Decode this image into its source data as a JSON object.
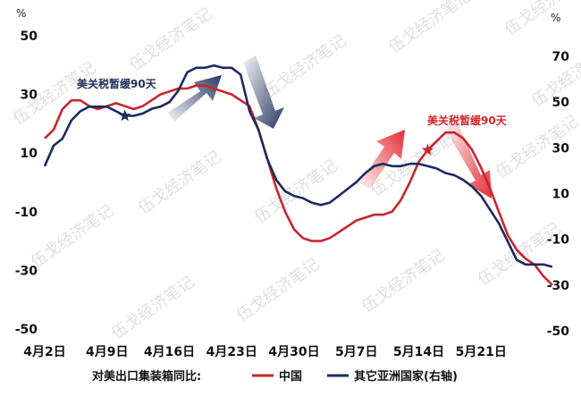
{
  "chart_data": {
    "type": "line",
    "title": "",
    "xlabel": "",
    "ylabel_left_unit": "%",
    "ylabel_right_unit": "%",
    "y_left_range": [
      -50,
      50
    ],
    "y_left_ticks": [
      50,
      30,
      10,
      -10,
      -30,
      -50
    ],
    "y_right_range": [
      -50,
      80
    ],
    "y_right_ticks": [
      70,
      50,
      30,
      10,
      -10,
      -30,
      -50
    ],
    "x_range": [
      0,
      55
    ],
    "x_ticks": [
      {
        "x": 0,
        "label": "4月2日"
      },
      {
        "x": 7,
        "label": "4月9日"
      },
      {
        "x": 14,
        "label": "4月16日"
      },
      {
        "x": 21,
        "label": "4月23日"
      },
      {
        "x": 28,
        "label": "4月30日"
      },
      {
        "x": 35,
        "label": "5月7日"
      },
      {
        "x": 42,
        "label": "5月14日"
      },
      {
        "x": 49,
        "label": "5月21日"
      }
    ],
    "legend_title": "对美出口集装箱同比:",
    "series": [
      {
        "name": "中国",
        "axis": "left",
        "color": "#c8252c",
        "points": [
          [
            0,
            15
          ],
          [
            1,
            18
          ],
          [
            2,
            25
          ],
          [
            3,
            28
          ],
          [
            4,
            28
          ],
          [
            5,
            26
          ],
          [
            6,
            25
          ],
          [
            7,
            26
          ],
          [
            8,
            27
          ],
          [
            9,
            26
          ],
          [
            10,
            25
          ],
          [
            11,
            26
          ],
          [
            12,
            28
          ],
          [
            13,
            30
          ],
          [
            14,
            31
          ],
          [
            15,
            32
          ],
          [
            16,
            32
          ],
          [
            17,
            33
          ],
          [
            18,
            33
          ],
          [
            19,
            32
          ],
          [
            20,
            31
          ],
          [
            21,
            30
          ],
          [
            22,
            28
          ],
          [
            23,
            26
          ],
          [
            24,
            18
          ],
          [
            25,
            8
          ],
          [
            26,
            -2
          ],
          [
            27,
            -10
          ],
          [
            28,
            -16
          ],
          [
            29,
            -19
          ],
          [
            30,
            -20
          ],
          [
            31,
            -20
          ],
          [
            32,
            -19
          ],
          [
            33,
            -17
          ],
          [
            34,
            -15
          ],
          [
            35,
            -13
          ],
          [
            36,
            -12
          ],
          [
            37,
            -11
          ],
          [
            38,
            -11
          ],
          [
            39,
            -10
          ],
          [
            40,
            -6
          ],
          [
            41,
            0
          ],
          [
            42,
            7
          ],
          [
            43,
            11
          ],
          [
            44,
            14
          ],
          [
            45,
            17
          ],
          [
            46,
            17
          ],
          [
            47,
            15
          ],
          [
            48,
            11
          ],
          [
            49,
            5
          ],
          [
            50,
            -2
          ],
          [
            51,
            -10
          ],
          [
            52,
            -18
          ],
          [
            53,
            -23
          ],
          [
            54,
            -26
          ],
          [
            55,
            -28
          ],
          [
            56,
            -32
          ],
          [
            57,
            -35
          ]
        ]
      },
      {
        "name": "其它亚洲国家(右轴)",
        "axis": "right",
        "color": "#1c2a5e",
        "points": [
          [
            0,
            22
          ],
          [
            1,
            31
          ],
          [
            2,
            34
          ],
          [
            3,
            42
          ],
          [
            4,
            46
          ],
          [
            5,
            48
          ],
          [
            6,
            48
          ],
          [
            7,
            48
          ],
          [
            8,
            46
          ],
          [
            9,
            44
          ],
          [
            10,
            44
          ],
          [
            11,
            45
          ],
          [
            12,
            47
          ],
          [
            13,
            48
          ],
          [
            14,
            50
          ],
          [
            15,
            55
          ],
          [
            16,
            63
          ],
          [
            17,
            65
          ],
          [
            18,
            65
          ],
          [
            19,
            66
          ],
          [
            20,
            65
          ],
          [
            21,
            65
          ],
          [
            22,
            62
          ],
          [
            23,
            46
          ],
          [
            24,
            38
          ],
          [
            25,
            25
          ],
          [
            26,
            16
          ],
          [
            27,
            11
          ],
          [
            28,
            9
          ],
          [
            29,
            8
          ],
          [
            30,
            6
          ],
          [
            31,
            5
          ],
          [
            32,
            6
          ],
          [
            33,
            9
          ],
          [
            34,
            12
          ],
          [
            35,
            15
          ],
          [
            36,
            19
          ],
          [
            37,
            22
          ],
          [
            38,
            23
          ],
          [
            39,
            22
          ],
          [
            40,
            22
          ],
          [
            41,
            23
          ],
          [
            42,
            23
          ],
          [
            43,
            22
          ],
          [
            44,
            21
          ],
          [
            45,
            19
          ],
          [
            46,
            18
          ],
          [
            47,
            16
          ],
          [
            48,
            13
          ],
          [
            49,
            9
          ],
          [
            50,
            3
          ],
          [
            51,
            -3
          ],
          [
            52,
            -11
          ],
          [
            53,
            -19
          ],
          [
            54,
            -21
          ],
          [
            55,
            -21
          ],
          [
            56,
            -21
          ],
          [
            57,
            -22
          ]
        ]
      }
    ],
    "annotations": [
      {
        "text": "美关税暂缓90天",
        "color": "#1f2d5a",
        "star_at": {
          "series": 1,
          "x": 9
        }
      },
      {
        "text": "美关税暂缓90天",
        "color": "#d0262a",
        "star_at": {
          "series": 0,
          "x": 43
        }
      }
    ],
    "watermark": "伍戈经济笔记",
    "colors": {
      "china": "#c8252c",
      "asia": "#1c2a5e",
      "arrow_navy": "#1f2d5a",
      "arrow_red": "#e0222a"
    }
  }
}
